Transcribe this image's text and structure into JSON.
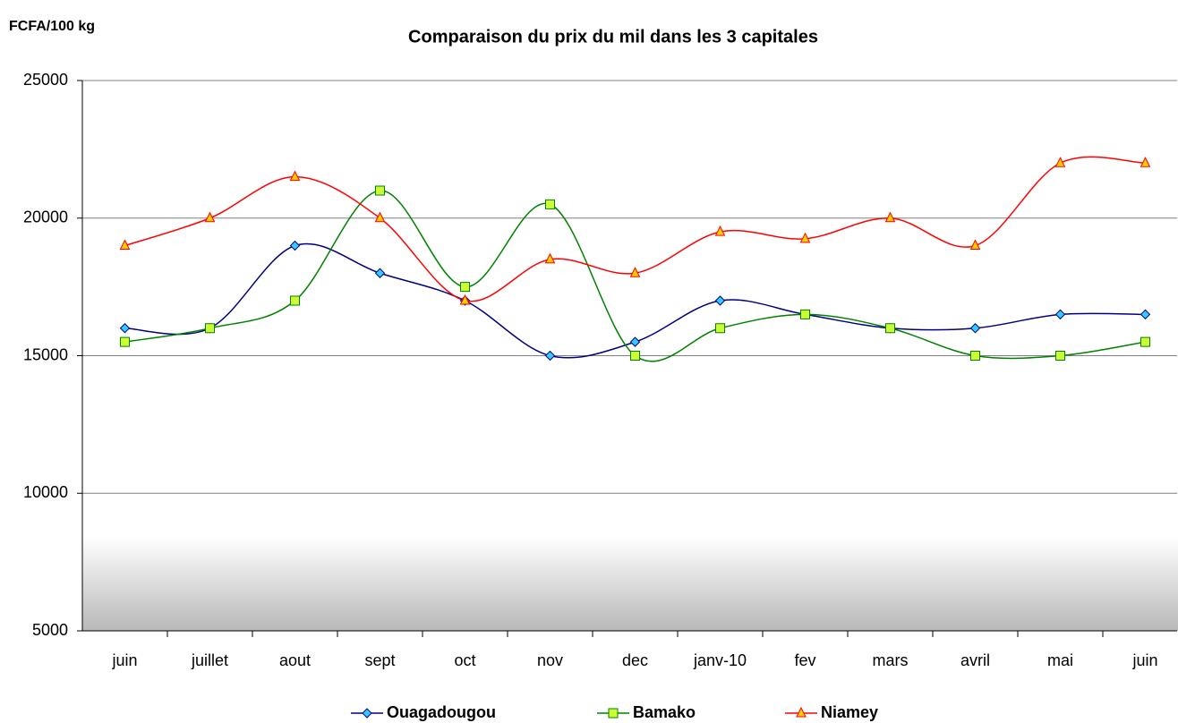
{
  "chart_data": {
    "type": "line",
    "title": "Comparaison du prix du mil dans les 3 capitales",
    "y_label": "FCFA/100 kg",
    "categories": [
      "juin",
      "juillet",
      "aout",
      "sept",
      "oct",
      "nov",
      "dec",
      "janv-10",
      "fev",
      "mars",
      "avril",
      "mai",
      "juin"
    ],
    "series": [
      {
        "name": "Ouagadougou",
        "color": "#000080",
        "marker": "diamond",
        "marker_color": "#33ccff",
        "values": [
          16000,
          16000,
          19000,
          18000,
          17000,
          15000,
          15500,
          17000,
          16500,
          16000,
          16000,
          16500,
          16500
        ]
      },
      {
        "name": "Bamako",
        "color": "#008000",
        "marker": "square",
        "marker_color": "#ccff33",
        "values": [
          15500,
          16000,
          17000,
          21000,
          17500,
          20500,
          15000,
          16000,
          16500,
          16000,
          15000,
          15000,
          15500
        ]
      },
      {
        "name": "Niamey",
        "color": "#ff0000",
        "marker": "triangle",
        "marker_color": "#ffcc00",
        "values": [
          19000,
          20000,
          21500,
          20000,
          17000,
          18500,
          18000,
          19500,
          19250,
          20000,
          19000,
          22000,
          22000
        ]
      }
    ],
    "ylim": [
      5000,
      25000
    ],
    "yticks": [
      5000,
      10000,
      15000,
      20000,
      25000
    ],
    "grid": true,
    "smooth": true,
    "legend": "bottom"
  }
}
